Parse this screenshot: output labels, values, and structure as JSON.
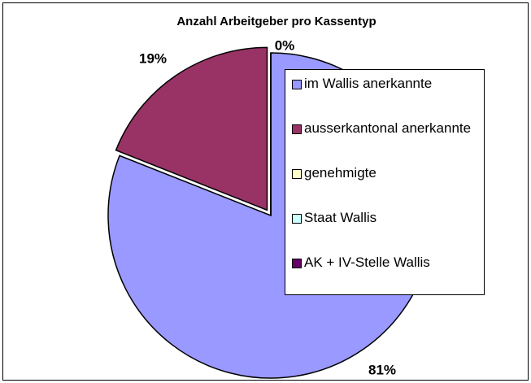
{
  "chart_data": {
    "type": "pie",
    "title": "Anzahl Arbeitgeber pro Kassentyp",
    "categories": [
      "im Wallis anerkannte",
      "ausserkantonal anerkannte",
      "genehmigte",
      "Staat Wallis",
      "AK + IV-Stelle Wallis"
    ],
    "values": [
      81,
      19,
      0,
      0,
      0
    ],
    "value_labels": [
      "81%",
      "19%",
      "0%",
      null,
      null
    ],
    "colors": [
      "#9999ff",
      "#993366",
      "#ffffcc",
      "#ccffff",
      "#660066"
    ]
  }
}
